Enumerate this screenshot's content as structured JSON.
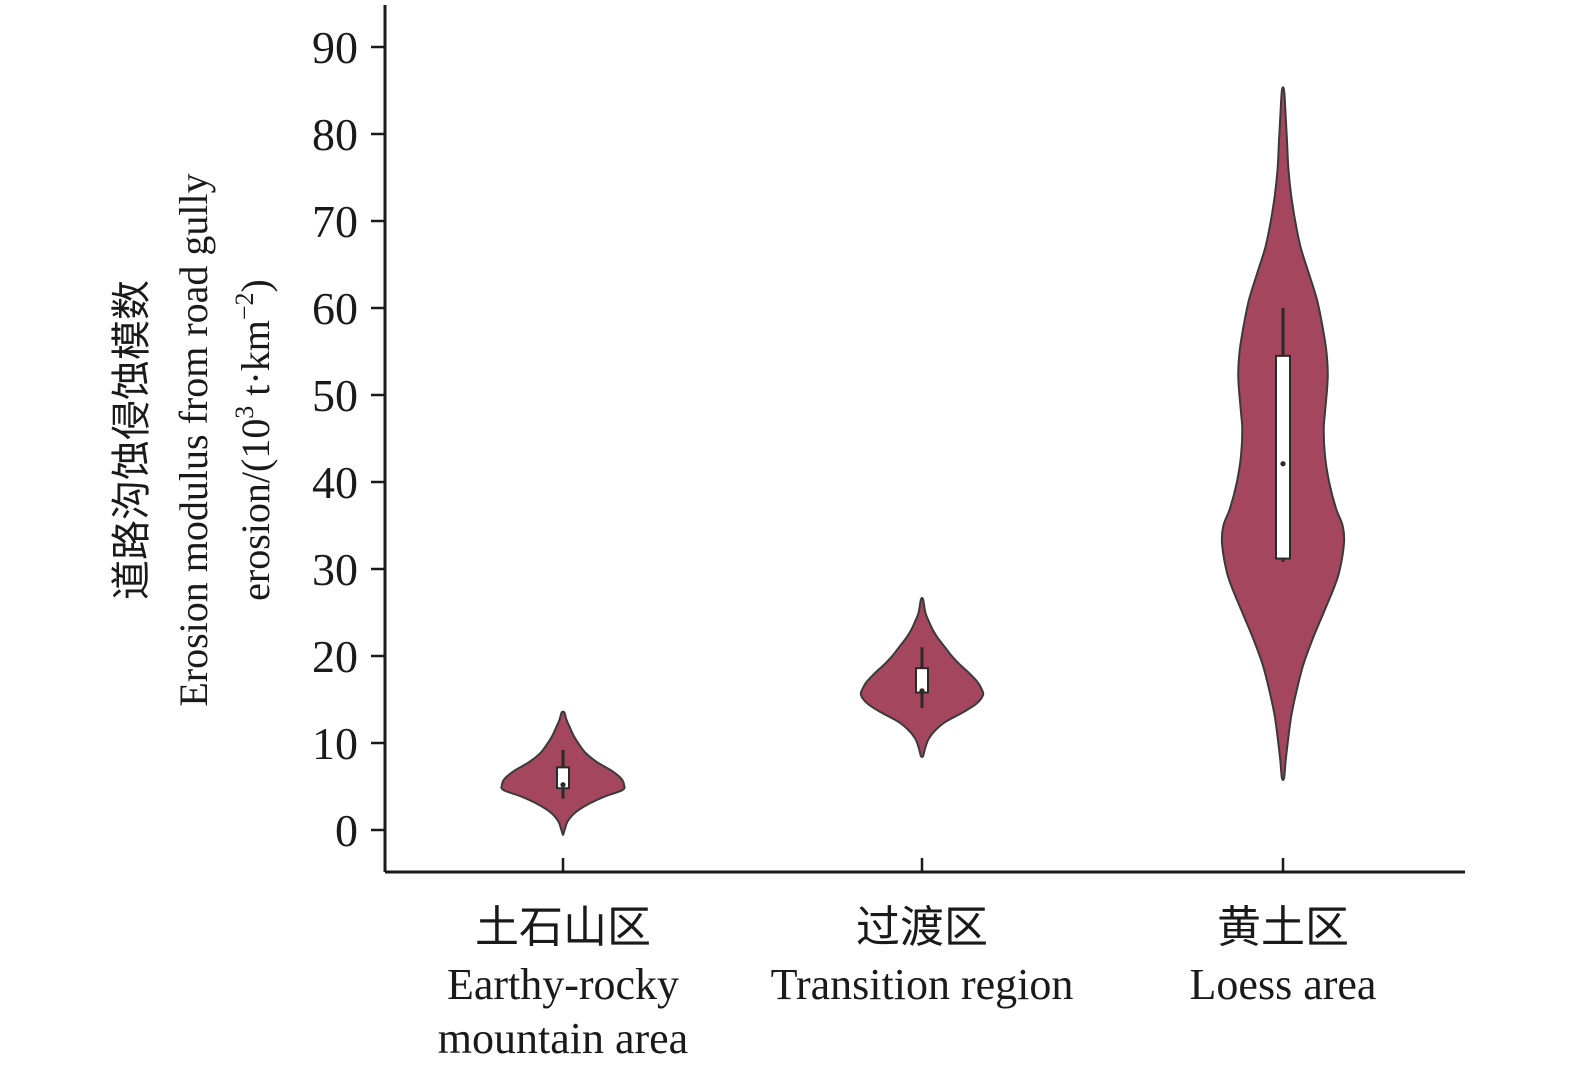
{
  "chart_data": {
    "type": "violin",
    "ylabel": {
      "line1": "道路沟蚀侵蚀模数",
      "line2": "Erosion modulus from road gully",
      "line3_prefix": "erosion/(10",
      "line3_sup1": "3",
      "line3_mid": " t·km",
      "line3_sup2": "−2",
      "line3_suffix": ")"
    },
    "ylim": [
      -5,
      95
    ],
    "yticks": [
      0,
      10,
      20,
      30,
      40,
      50,
      60,
      70,
      80,
      90
    ],
    "categories": [
      {
        "label_cn": "土石山区",
        "label_en_lines": [
          "Earthy-rocky",
          "mountain area"
        ],
        "min": -0.5,
        "max": 13.5,
        "q1": 4.8,
        "median": 5.2,
        "q3": 7.2,
        "whisker_low": 3.6,
        "whisker_high": 9.2,
        "density_profile": [
          [
            -0.5,
            0.2
          ],
          [
            0,
            1.2
          ],
          [
            1,
            3.5
          ],
          [
            2,
            9
          ],
          [
            3,
            19
          ],
          [
            3.8,
            30
          ],
          [
            4.6,
            44
          ],
          [
            5.2,
            45
          ],
          [
            5.9,
            43
          ],
          [
            6.8,
            36
          ],
          [
            7.8,
            25
          ],
          [
            8.8,
            17
          ],
          [
            9.8,
            12
          ],
          [
            10.8,
            8
          ],
          [
            11.8,
            5
          ],
          [
            12.7,
            2.5
          ],
          [
            13.5,
            1
          ]
        ]
      },
      {
        "label_cn": "过渡区",
        "label_en_lines": [
          "Transition region"
        ],
        "min": 8.5,
        "max": 26.5,
        "q1": 15.8,
        "median": 16.0,
        "q3": 18.6,
        "whisker_low": 14.0,
        "whisker_high": 21.0,
        "density_profile": [
          [
            8.5,
            0.8
          ],
          [
            9.5,
            2.5
          ],
          [
            10.5,
            5
          ],
          [
            11.5,
            10
          ],
          [
            12.5,
            18
          ],
          [
            13.5,
            30
          ],
          [
            14.5,
            40
          ],
          [
            15.5,
            45
          ],
          [
            16.2,
            44
          ],
          [
            17,
            41
          ],
          [
            18,
            35
          ],
          [
            19,
            28
          ],
          [
            20,
            22
          ],
          [
            21,
            17
          ],
          [
            22,
            12
          ],
          [
            23,
            8
          ],
          [
            24,
            5
          ],
          [
            25,
            2.5
          ],
          [
            26.5,
            0.8
          ]
        ]
      },
      {
        "label_cn": "黄土区",
        "label_en_lines": [
          "Loess area"
        ],
        "min": 6,
        "max": 85,
        "q1": 31.2,
        "median": 42.1,
        "q3": 54.5,
        "whisker_low": 30.8,
        "whisker_high": 60.0,
        "density_profile": [
          [
            6,
            0.8
          ],
          [
            8,
            2
          ],
          [
            10,
            3.5
          ],
          [
            13,
            6
          ],
          [
            16,
            10
          ],
          [
            19,
            15
          ],
          [
            22,
            22
          ],
          [
            25,
            30
          ],
          [
            28,
            38
          ],
          [
            30,
            42
          ],
          [
            33,
            45
          ],
          [
            35,
            44
          ],
          [
            37,
            39
          ],
          [
            40,
            34
          ],
          [
            43,
            31
          ],
          [
            46,
            30
          ],
          [
            48,
            31
          ],
          [
            52,
            33
          ],
          [
            55,
            32
          ],
          [
            58,
            29
          ],
          [
            61,
            25
          ],
          [
            64,
            19
          ],
          [
            67,
            13
          ],
          [
            70,
            9
          ],
          [
            73,
            6
          ],
          [
            76,
            4
          ],
          [
            79,
            3
          ],
          [
            82,
            2
          ],
          [
            85,
            0.8
          ]
        ]
      }
    ],
    "colors": {
      "violin_fill": "#a5465f",
      "violin_stroke": "#3a3a3a",
      "box_fill": "#ffffff",
      "axis": "#1a1a1a"
    }
  }
}
